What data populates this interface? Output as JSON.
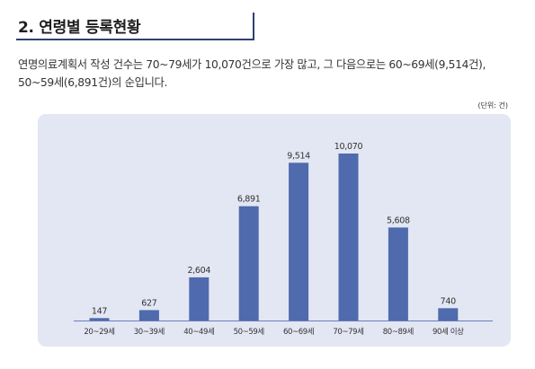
{
  "header": {
    "title": "2. 연령별 등록현황"
  },
  "description": {
    "line1": "연명의료계획서 작성 건수는 70~79세가 10,070건으로 가장 많고, 그 다음으로는 60~69세(9,514건),",
    "line2": "50~59세(6,891건)의 순입니다."
  },
  "unit_note": "(단위: 건)",
  "colors": {
    "bar": "#4f6aad",
    "panel": "#e3e6f3",
    "accent": "#2f4172"
  },
  "chart_data": {
    "type": "bar",
    "categories": [
      "20~29세",
      "30~39세",
      "40~49세",
      "50~59세",
      "60~69세",
      "70~79세",
      "80~89세",
      "90세 이상"
    ],
    "values": [
      147,
      627,
      2604,
      6891,
      9514,
      10070,
      5608,
      740
    ],
    "value_labels": [
      "147",
      "627",
      "2,604",
      "6,891",
      "9,514",
      "10,070",
      "5,608",
      "740"
    ],
    "ylim": [
      0,
      10070
    ],
    "grid": false,
    "legend": "none"
  }
}
